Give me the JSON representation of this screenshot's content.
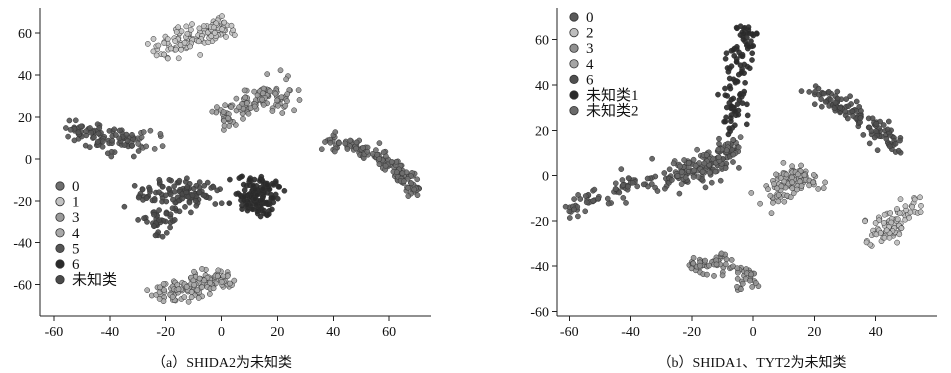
{
  "chart_data": [
    {
      "type": "scatter",
      "caption": "（a）SHIDA2为未知类",
      "xlim": [
        -65,
        75
      ],
      "ylim": [
        -75,
        72
      ],
      "xticks": [
        -60,
        -40,
        -20,
        0,
        20,
        40,
        60
      ],
      "yticks": [
        -60,
        -40,
        -20,
        0,
        20,
        40,
        60
      ],
      "legend": {
        "position": "lower-left"
      },
      "series": [
        {
          "name": "0",
          "color": "#6e6e6e",
          "clusters": [
            {
              "pts": [
                [
                  -34,
                  8
                ],
                [
                  -28,
                  10
                ],
                [
                  -22,
                  9
                ]
              ],
              "spread": 3,
              "n": 18
            },
            {
              "pts": [
                [
                  38,
                  9
                ],
                [
                  48,
                  6
                ],
                [
                  58,
                  0
                ],
                [
                  65,
                  -8
                ],
                [
                  70,
                  -16
                ]
              ],
              "spread": 1.8,
              "n": 140
            }
          ]
        },
        {
          "name": "1",
          "color": "#c2c2c2",
          "clusters": [
            {
              "pts": [
                [
                  -22,
                  52
                ],
                [
                  -14,
                  56
                ],
                [
                  -6,
                  60
                ],
                [
                  2,
                  63
                ]
              ],
              "spread": 2.6,
              "n": 120
            }
          ]
        },
        {
          "name": "3",
          "color": "#9a9a9a",
          "clusters": [
            {
              "pts": [
                [
                  -2,
                  21
                ],
                [
                  6,
                  22
                ],
                [
                  12,
                  27
                ],
                [
                  18,
                  33
                ],
                [
                  22,
                  27
                ]
              ],
              "spread": 3.2,
              "n": 120
            }
          ]
        },
        {
          "name": "4",
          "color": "#a8a8a8",
          "clusters": [
            {
              "pts": [
                [
                  -22,
                  -66
                ],
                [
                  -14,
                  -60
                ],
                [
                  -6,
                  -58
                ],
                [
                  2,
                  -57
                ],
                [
                  -16,
                  -64
                ]
              ],
              "spread": 2.8,
              "n": 140
            }
          ]
        },
        {
          "name": "5",
          "color": "#555555",
          "clusters": [
            {
              "pts": [
                [
                  -55,
                  12
                ],
                [
                  -48,
                  13
                ],
                [
                  -40,
                  8
                ],
                [
                  -34,
                  9
                ]
              ],
              "spread": 2.6,
              "n": 90
            }
          ]
        },
        {
          "name": "6",
          "color": "#2a2a2a",
          "clusters": [
            {
              "pts": [
                [
                  8,
                  -10
                ],
                [
                  14,
                  -16
                ],
                [
                  14,
                  -24
                ],
                [
                  8,
                  -20
                ],
                [
                  18,
                  -12
                ]
              ],
              "spread": 2.8,
              "n": 150
            }
          ]
        },
        {
          "name": "未知类",
          "color": "#4a4a4a",
          "clusters": [
            {
              "pts": [
                [
                  -28,
                  -18
                ],
                [
                  -20,
                  -16
                ],
                [
                  -12,
                  -16
                ],
                [
                  -4,
                  -15
                ],
                [
                  -26,
                  -30
                ],
                [
                  -20,
                  -30
                ]
              ],
              "spread": 3,
              "n": 150
            }
          ]
        }
      ]
    },
    {
      "type": "scatter",
      "caption": "（b）SHIDA1、TYT2为未知类",
      "xlim": [
        -64,
        60
      ],
      "ylim": [
        -62,
        74
      ],
      "xticks": [
        -60,
        -40,
        -20,
        0,
        20,
        40
      ],
      "yticks": [
        -60,
        -40,
        -20,
        0,
        20,
        40,
        60
      ],
      "legend": {
        "position": "top-left"
      },
      "series": [
        {
          "name": "0",
          "color": "#5a5a5a",
          "clusters": [
            {
              "pts": [
                [
                  -60,
                  -16
                ],
                [
                  -50,
                  -8
                ],
                [
                  -40,
                  -4
                ],
                [
                  -30,
                  -2
                ],
                [
                  -20,
                  0
                ],
                [
                  -12,
                  4
                ],
                [
                  -8,
                  12
                ]
              ],
              "spread": 2.8,
              "n": 160
            }
          ]
        },
        {
          "name": "2",
          "color": "#bdbdbd",
          "clusters": [
            {
              "pts": [
                [
                  40,
                  -30
                ],
                [
                  44,
                  -24
                ],
                [
                  48,
                  -18
                ],
                [
                  54,
                  -12
                ]
              ],
              "spread": 2.6,
              "n": 90
            }
          ]
        },
        {
          "name": "3",
          "color": "#909090",
          "clusters": [
            {
              "pts": [
                [
                  -20,
                  -40
                ],
                [
                  -12,
                  -38
                ],
                [
                  -6,
                  -42
                ],
                [
                  -2,
                  -48
                ]
              ],
              "spread": 2.4,
              "n": 80
            }
          ]
        },
        {
          "name": "4",
          "color": "#a5a5a5",
          "clusters": [
            {
              "pts": [
                [
                  6,
                  -12
                ],
                [
                  10,
                  -4
                ],
                [
                  14,
                  0
                ],
                [
                  20,
                  -4
                ],
                [
                  10,
                  2
                ]
              ],
              "spread": 2.6,
              "n": 100
            }
          ]
        },
        {
          "name": "6",
          "color": "#4f4f4f",
          "clusters": [
            {
              "pts": [
                [
                  20,
                  38
                ],
                [
                  28,
                  32
                ],
                [
                  36,
                  26
                ],
                [
                  42,
                  18
                ],
                [
                  48,
                  13
                ]
              ],
              "spread": 2.2,
              "n": 120
            }
          ]
        },
        {
          "name": "未知类1",
          "color": "#2a2a2a",
          "clusters": [
            {
              "pts": [
                [
                  -8,
                  20
                ],
                [
                  -6,
                  30
                ],
                [
                  -5,
                  40
                ],
                [
                  -4,
                  50
                ],
                [
                  -3,
                  58
                ],
                [
                  -2,
                  66
                ]
              ],
              "spread": 2.2,
              "n": 110
            }
          ]
        },
        {
          "name": "未知类2",
          "color": "#6a6a6a",
          "clusters": [
            {
              "pts": [
                [
                  -18,
                  2
                ],
                [
                  -24,
                  4
                ],
                [
                  -14,
                  6
                ],
                [
                  -10,
                  8
                ],
                [
                  -6,
                  14
                ]
              ],
              "spread": 2.6,
              "n": 90
            }
          ]
        }
      ]
    }
  ]
}
